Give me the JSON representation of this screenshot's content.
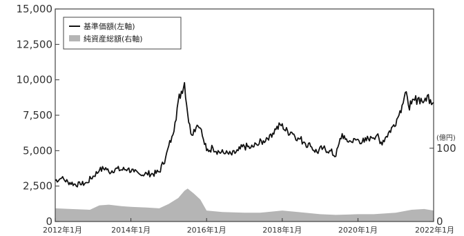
{
  "chart_data": {
    "type": "line",
    "left_axis": {
      "ticks": [
        "0",
        "2,500",
        "5,000",
        "7,500",
        "10,000",
        "12,500",
        "15,000"
      ],
      "ylim": [
        0,
        15000
      ]
    },
    "right_axis": {
      "unit": "(億円)",
      "ticks": [
        "0",
        "100"
      ],
      "ylim": [
        0,
        290
      ]
    },
    "x_axis": {
      "range": [
        "2012-01",
        "2022-01"
      ],
      "tick_labels": [
        "2012年1月",
        "2014年1月",
        "2016年1月",
        "2018年1月",
        "2020年1月",
        "2022年1月"
      ]
    },
    "legend": {
      "placement": "top-left",
      "items": [
        "基準価額(左軸)",
        "純資産総額(右軸)"
      ]
    },
    "colors": {
      "line": "#111111",
      "area": "#b5b5b5",
      "axis": "#333333",
      "frame": "#444444"
    },
    "series": [
      {
        "name": "基準価額(左軸)",
        "axis": "left",
        "type": "line",
        "points": [
          [
            "2012-01",
            2900
          ],
          [
            "2012-03",
            3050
          ],
          [
            "2012-05",
            2800
          ],
          [
            "2012-07",
            2650
          ],
          [
            "2012-09",
            2600
          ],
          [
            "2012-11",
            2750
          ],
          [
            "2013-01",
            3200
          ],
          [
            "2013-03",
            3600
          ],
          [
            "2013-05",
            3800
          ],
          [
            "2013-06",
            3500
          ],
          [
            "2013-08",
            3700
          ],
          [
            "2013-10",
            3650
          ],
          [
            "2013-12",
            3700
          ],
          [
            "2014-02",
            3500
          ],
          [
            "2014-04",
            3300
          ],
          [
            "2014-06",
            3400
          ],
          [
            "2014-08",
            3350
          ],
          [
            "2014-10",
            3500
          ],
          [
            "2014-12",
            4500
          ],
          [
            "2015-02",
            6000
          ],
          [
            "2015-03",
            7000
          ],
          [
            "2015-04",
            8500
          ],
          [
            "2015-05",
            9200
          ],
          [
            "2015-06",
            9800
          ],
          [
            "2015-07",
            7600
          ],
          [
            "2015-08",
            6200
          ],
          [
            "2015-09",
            6500
          ],
          [
            "2015-10",
            6800
          ],
          [
            "2015-11",
            6600
          ],
          [
            "2015-12",
            5800
          ],
          [
            "2016-01",
            5000
          ],
          [
            "2016-03",
            5200
          ],
          [
            "2016-05",
            4900
          ],
          [
            "2016-07",
            4800
          ],
          [
            "2016-09",
            4700
          ],
          [
            "2016-11",
            5000
          ],
          [
            "2017-01",
            5300
          ],
          [
            "2017-03",
            5200
          ],
          [
            "2017-05",
            5400
          ],
          [
            "2017-07",
            5700
          ],
          [
            "2017-09",
            6100
          ],
          [
            "2017-11",
            6500
          ],
          [
            "2018-01",
            6900
          ],
          [
            "2018-02",
            6400
          ],
          [
            "2018-04",
            6300
          ],
          [
            "2018-06",
            5900
          ],
          [
            "2018-08",
            5600
          ],
          [
            "2018-10",
            5300
          ],
          [
            "2018-12",
            4900
          ],
          [
            "2019-02",
            5200
          ],
          [
            "2019-04",
            5000
          ],
          [
            "2019-06",
            4600
          ],
          [
            "2019-07",
            5500
          ],
          [
            "2019-08",
            6200
          ],
          [
            "2019-09",
            5800
          ],
          [
            "2019-11",
            5600
          ],
          [
            "2020-01",
            5800
          ],
          [
            "2020-03",
            5600
          ],
          [
            "2020-05",
            6000
          ],
          [
            "2020-07",
            6100
          ],
          [
            "2020-08",
            5500
          ],
          [
            "2020-10",
            6000
          ],
          [
            "2020-12",
            6700
          ],
          [
            "2021-02",
            7500
          ],
          [
            "2021-03",
            8200
          ],
          [
            "2021-04",
            9100
          ],
          [
            "2021-05",
            8200
          ],
          [
            "2021-06",
            8300
          ],
          [
            "2021-08",
            8700
          ],
          [
            "2021-10",
            8500
          ],
          [
            "2021-11",
            8900
          ],
          [
            "2021-12",
            8600
          ],
          [
            "2022-01",
            8400
          ]
        ]
      },
      {
        "name": "純資産総額(右軸)",
        "axis": "right",
        "type": "area",
        "points": [
          [
            "2012-01",
            18
          ],
          [
            "2012-06",
            17
          ],
          [
            "2012-12",
            16
          ],
          [
            "2013-03",
            22
          ],
          [
            "2013-06",
            23
          ],
          [
            "2013-10",
            21
          ],
          [
            "2014-01",
            20
          ],
          [
            "2014-06",
            19
          ],
          [
            "2014-10",
            18
          ],
          [
            "2015-01",
            24
          ],
          [
            "2015-04",
            32
          ],
          [
            "2015-06",
            42
          ],
          [
            "2015-07",
            45
          ],
          [
            "2015-09",
            38
          ],
          [
            "2015-11",
            30
          ],
          [
            "2016-01",
            15
          ],
          [
            "2016-06",
            13
          ],
          [
            "2017-01",
            12
          ],
          [
            "2017-06",
            12
          ],
          [
            "2018-01",
            15
          ],
          [
            "2018-06",
            13
          ],
          [
            "2019-01",
            10
          ],
          [
            "2019-06",
            9
          ],
          [
            "2020-01",
            10
          ],
          [
            "2020-06",
            10
          ],
          [
            "2021-01",
            12
          ],
          [
            "2021-06",
            16
          ],
          [
            "2021-10",
            17
          ],
          [
            "2022-01",
            15
          ]
        ]
      }
    ]
  }
}
